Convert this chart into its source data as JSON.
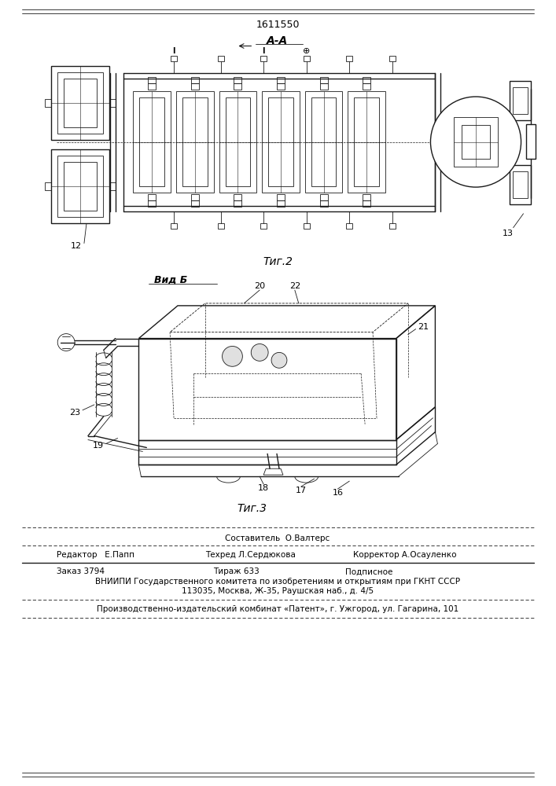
{
  "patent_number": "1611550",
  "background_color": "#ffffff",
  "line_color": "#1a1a1a",
  "fig_width": 7.07,
  "fig_height": 10.0,
  "fig2_label": "Τиг.2",
  "fig3_label": "Τиг.3",
  "view_a_label": "A-A",
  "view_b_label": "Вид Б",
  "label_12": "12",
  "label_13": "13",
  "label_16": "16",
  "label_17": "17",
  "label_18": "18",
  "label_19": "19",
  "label_20": "20",
  "label_21": "21",
  "label_22": "22",
  "label_23": "23",
  "footer_sestavitel": "Составитель  О.Валтерс",
  "footer_redaktor": "Редактор   Е.Папп",
  "footer_tehred": "Техред Л.Сердюкова",
  "footer_korrektor": "Корректор А.Осауленко",
  "footer_zakaz": "Заказ 3794",
  "footer_tirazh": "Тираж 633",
  "footer_podpisnoe": "Подписное",
  "footer_vniipи": "ВНИИПИ Государственного комитета по изобретениям и открытиям при ГКНТ СССР",
  "footer_address": "113035, Москва, Ж-35, Раушская наб., д. 4/5",
  "footer_kombinat": "Производственно-издательский комбинат «Патент», г. Ужгород, ул. Гагарина, 101"
}
